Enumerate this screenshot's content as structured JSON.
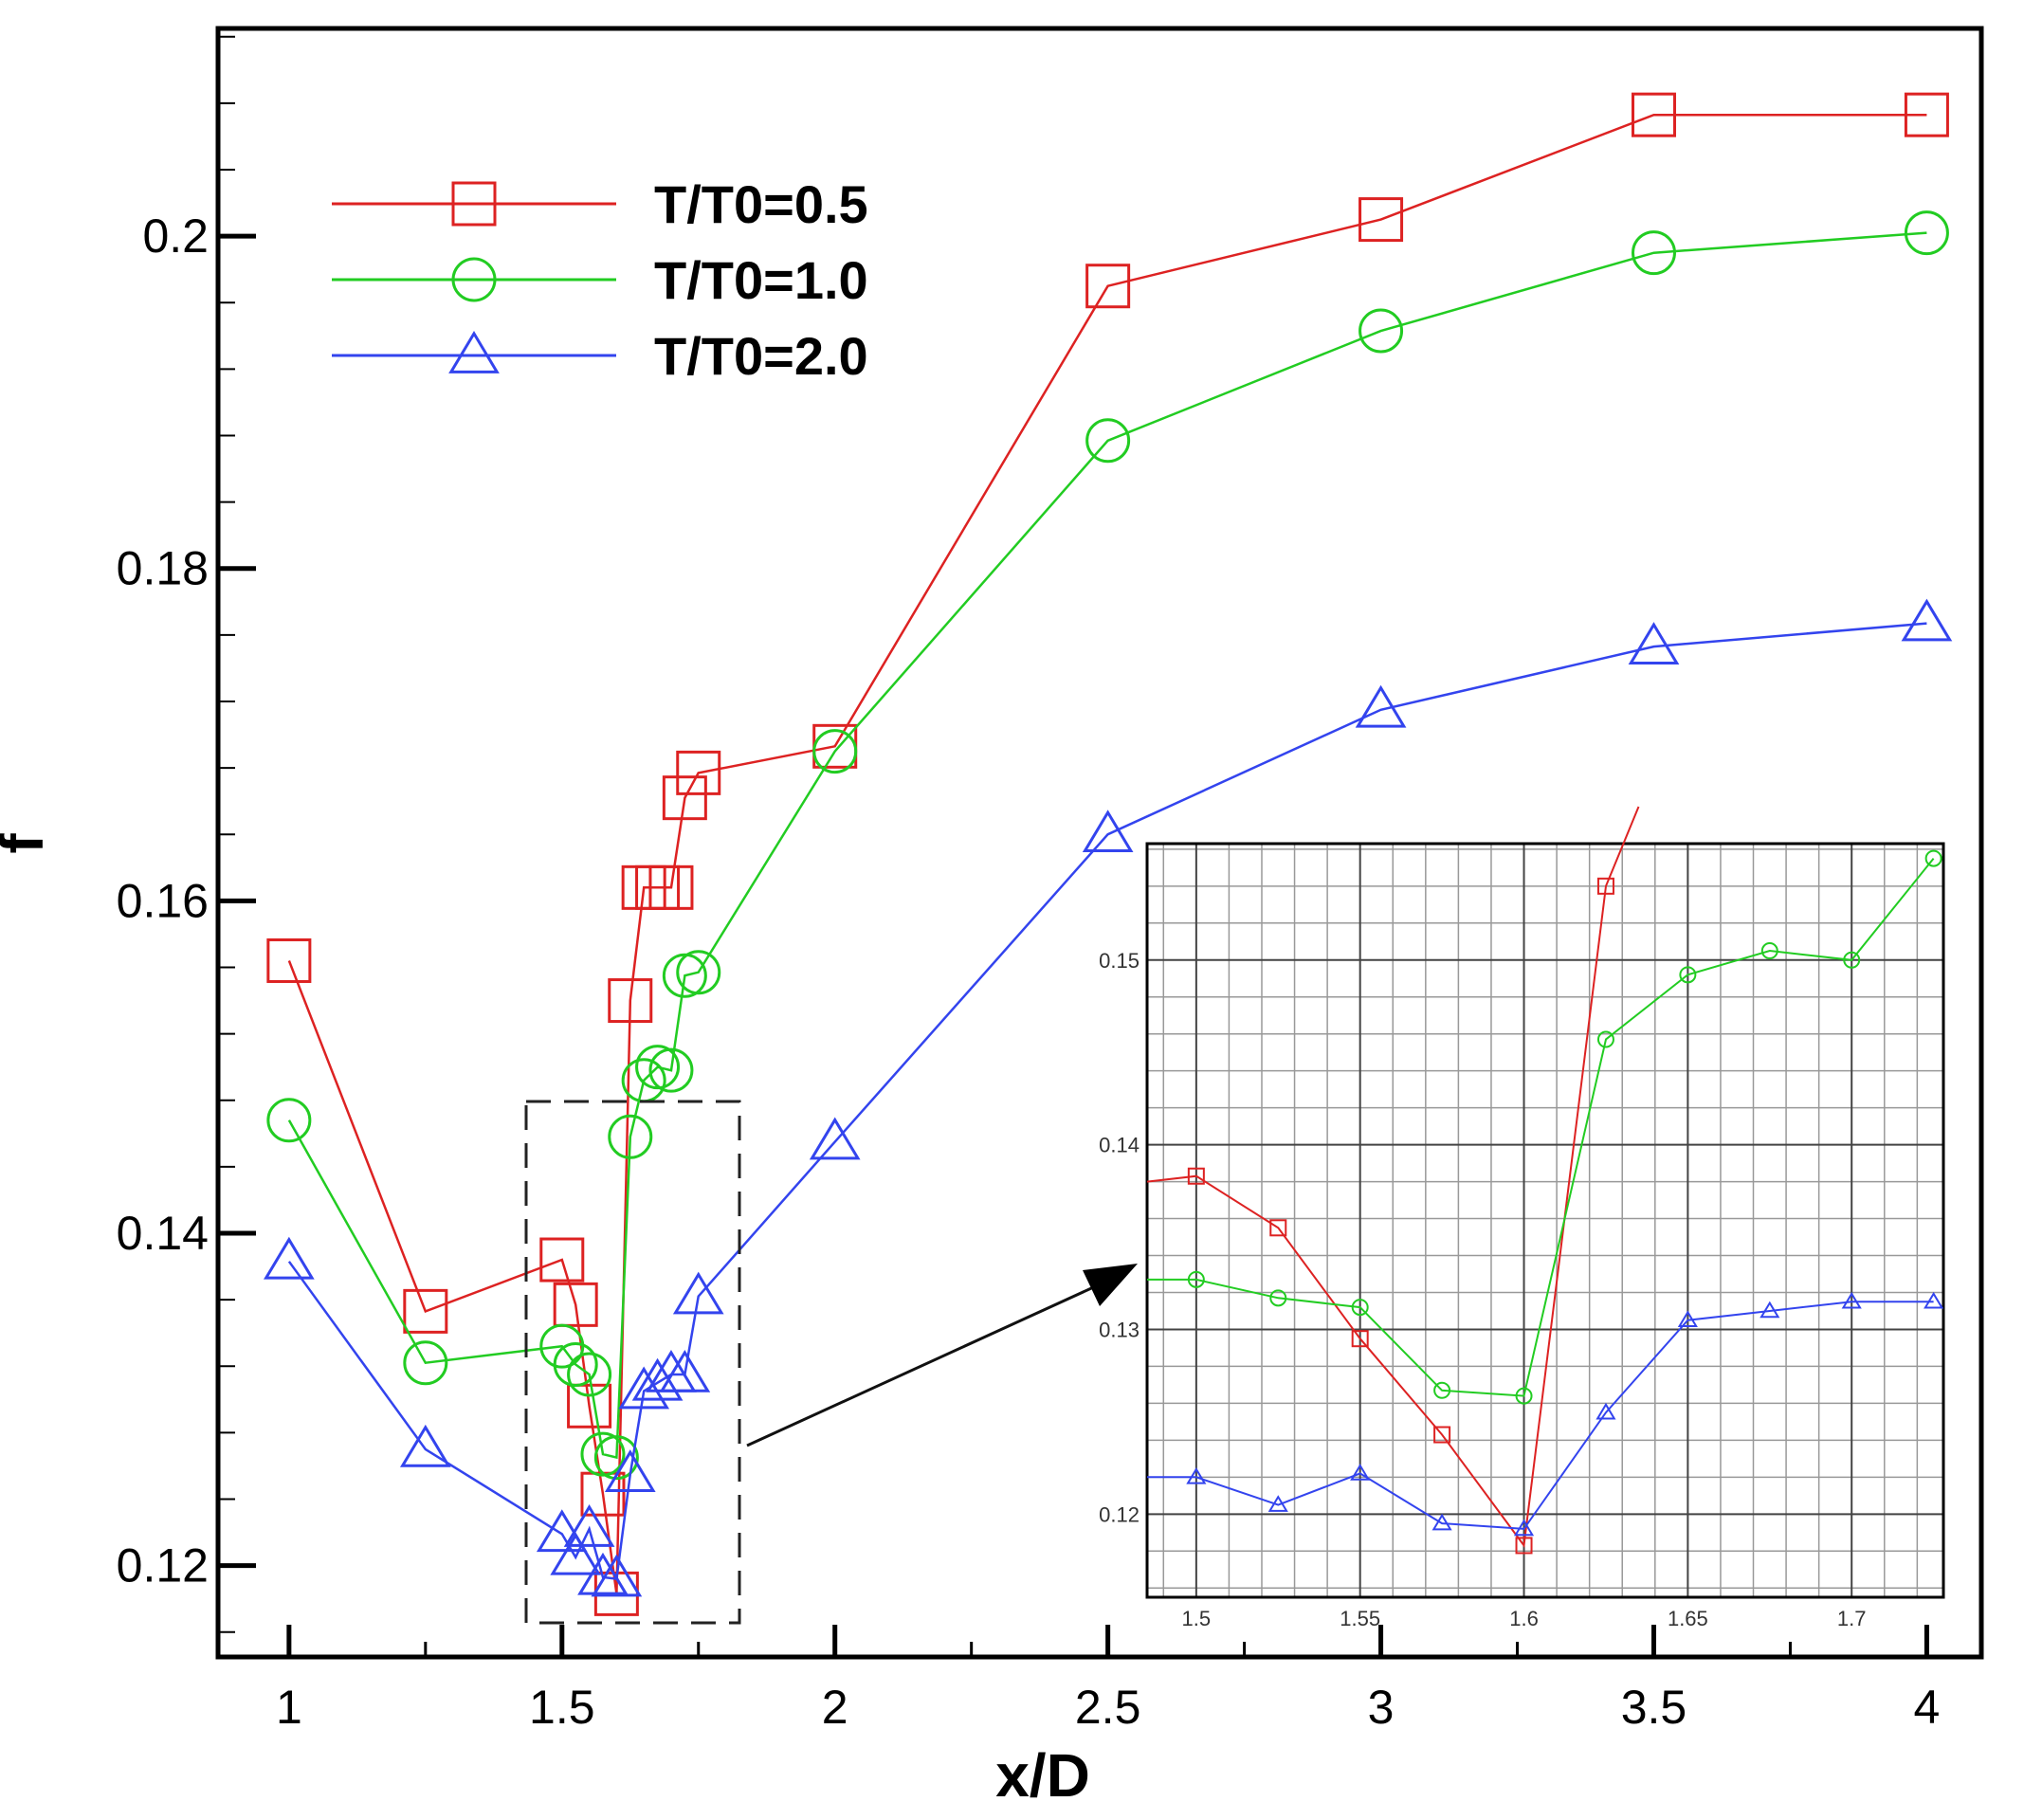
{
  "chart_data": [
    {
      "type": "line",
      "title": "",
      "xlabel": "x/D",
      "ylabel": "f",
      "xlim": [
        0.87,
        4.1
      ],
      "ylim": [
        0.1145,
        0.2125
      ],
      "xticks": [
        1,
        1.5,
        2,
        2.5,
        3,
        3.5,
        4
      ],
      "xtick_labels": [
        "1",
        "1.5",
        "2",
        "2.5",
        "3",
        "3.5",
        "4"
      ],
      "yticks": [
        0.12,
        0.14,
        0.16,
        0.18,
        0.2
      ],
      "ytick_labels": [
        "0.12",
        "0.14",
        "0.16",
        "0.18",
        "0.2"
      ],
      "legend_position": "top-left",
      "series": [
        {
          "name": "T/T0=0.5",
          "color": "#dd2222",
          "marker": "square",
          "x": [
            1,
            1.25,
            1.5,
            1.525,
            1.55,
            1.575,
            1.6,
            1.625,
            1.65,
            1.675,
            1.7,
            1.725,
            1.75,
            2,
            2.5,
            3,
            3.5,
            4
          ],
          "y": [
            0.1564,
            0.1353,
            0.1384,
            0.1357,
            0.1296,
            0.1243,
            0.1183,
            0.154,
            0.1608,
            0.1608,
            0.1608,
            0.1662,
            0.1677,
            0.1693,
            0.197,
            0.201,
            0.2073,
            0.2073
          ]
        },
        {
          "name": "T/T0=1.0",
          "color": "#22cc22",
          "marker": "circle",
          "x": [
            1,
            1.25,
            1.5,
            1.525,
            1.55,
            1.575,
            1.6,
            1.625,
            1.65,
            1.675,
            1.7,
            1.725,
            1.75,
            2,
            2.5,
            3,
            3.5,
            4
          ],
          "y": [
            0.1468,
            0.1322,
            0.1332,
            0.1321,
            0.1315,
            0.1267,
            0.1265,
            0.1458,
            0.1492,
            0.15,
            0.1498,
            0.1555,
            0.1557,
            0.169,
            0.1877,
            0.1943,
            0.199,
            0.2002
          ]
        },
        {
          "name": "T/T0=2.0",
          "color": "#3344ee",
          "marker": "triangle",
          "x": [
            1,
            1.25,
            1.5,
            1.525,
            1.55,
            1.575,
            1.6,
            1.625,
            1.65,
            1.675,
            1.7,
            1.725,
            1.75,
            2,
            2.5,
            3,
            3.5,
            4
          ],
          "y": [
            0.1383,
            0.127,
            0.1219,
            0.1205,
            0.1222,
            0.1193,
            0.1192,
            0.1255,
            0.1305,
            0.131,
            0.1315,
            0.1315,
            0.1362,
            0.1455,
            0.164,
            0.1715,
            0.1753,
            0.1767
          ]
        }
      ]
    },
    {
      "type": "line",
      "title": "",
      "xlabel": "",
      "ylabel": "",
      "xlim": [
        1.485,
        1.728
      ],
      "ylim": [
        0.1155,
        0.1563
      ],
      "xticks": [
        1.5,
        1.55,
        1.6,
        1.65,
        1.7
      ],
      "xtick_labels": [
        "1.5",
        "1.55",
        "1.6",
        "1.65",
        "1.7"
      ],
      "yticks": [
        0.12,
        0.13,
        0.14,
        0.15
      ],
      "ytick_labels": [
        "0.12",
        "0.13",
        "0.14",
        "0.15"
      ],
      "grid": true,
      "series": [
        {
          "name": "T/T0=0.5",
          "color": "#dd2222",
          "marker": "square",
          "x": [
            1.485,
            1.5,
            1.525,
            1.55,
            1.575,
            1.6,
            1.625,
            1.635
          ],
          "y": [
            0.138,
            0.1383,
            0.1355,
            0.1295,
            0.1243,
            0.1183,
            0.154,
            0.1583
          ]
        },
        {
          "name": "T/T0=1.0",
          "color": "#22cc22",
          "marker": "circle",
          "x": [
            1.485,
            1.5,
            1.525,
            1.55,
            1.575,
            1.6,
            1.625,
            1.65,
            1.675,
            1.7,
            1.725
          ],
          "y": [
            0.1327,
            0.1327,
            0.1317,
            0.1312,
            0.1267,
            0.1264,
            0.1457,
            0.1492,
            0.1505,
            0.15,
            0.1555
          ]
        },
        {
          "name": "T/T0=2.0",
          "color": "#3344ee",
          "marker": "triangle",
          "x": [
            1.485,
            1.5,
            1.525,
            1.55,
            1.575,
            1.6,
            1.625,
            1.65,
            1.675,
            1.7,
            1.725
          ],
          "y": [
            0.122,
            0.122,
            0.1205,
            0.1222,
            0.1195,
            0.1192,
            0.1255,
            0.1305,
            0.131,
            0.1315,
            0.1315
          ]
        }
      ]
    }
  ]
}
